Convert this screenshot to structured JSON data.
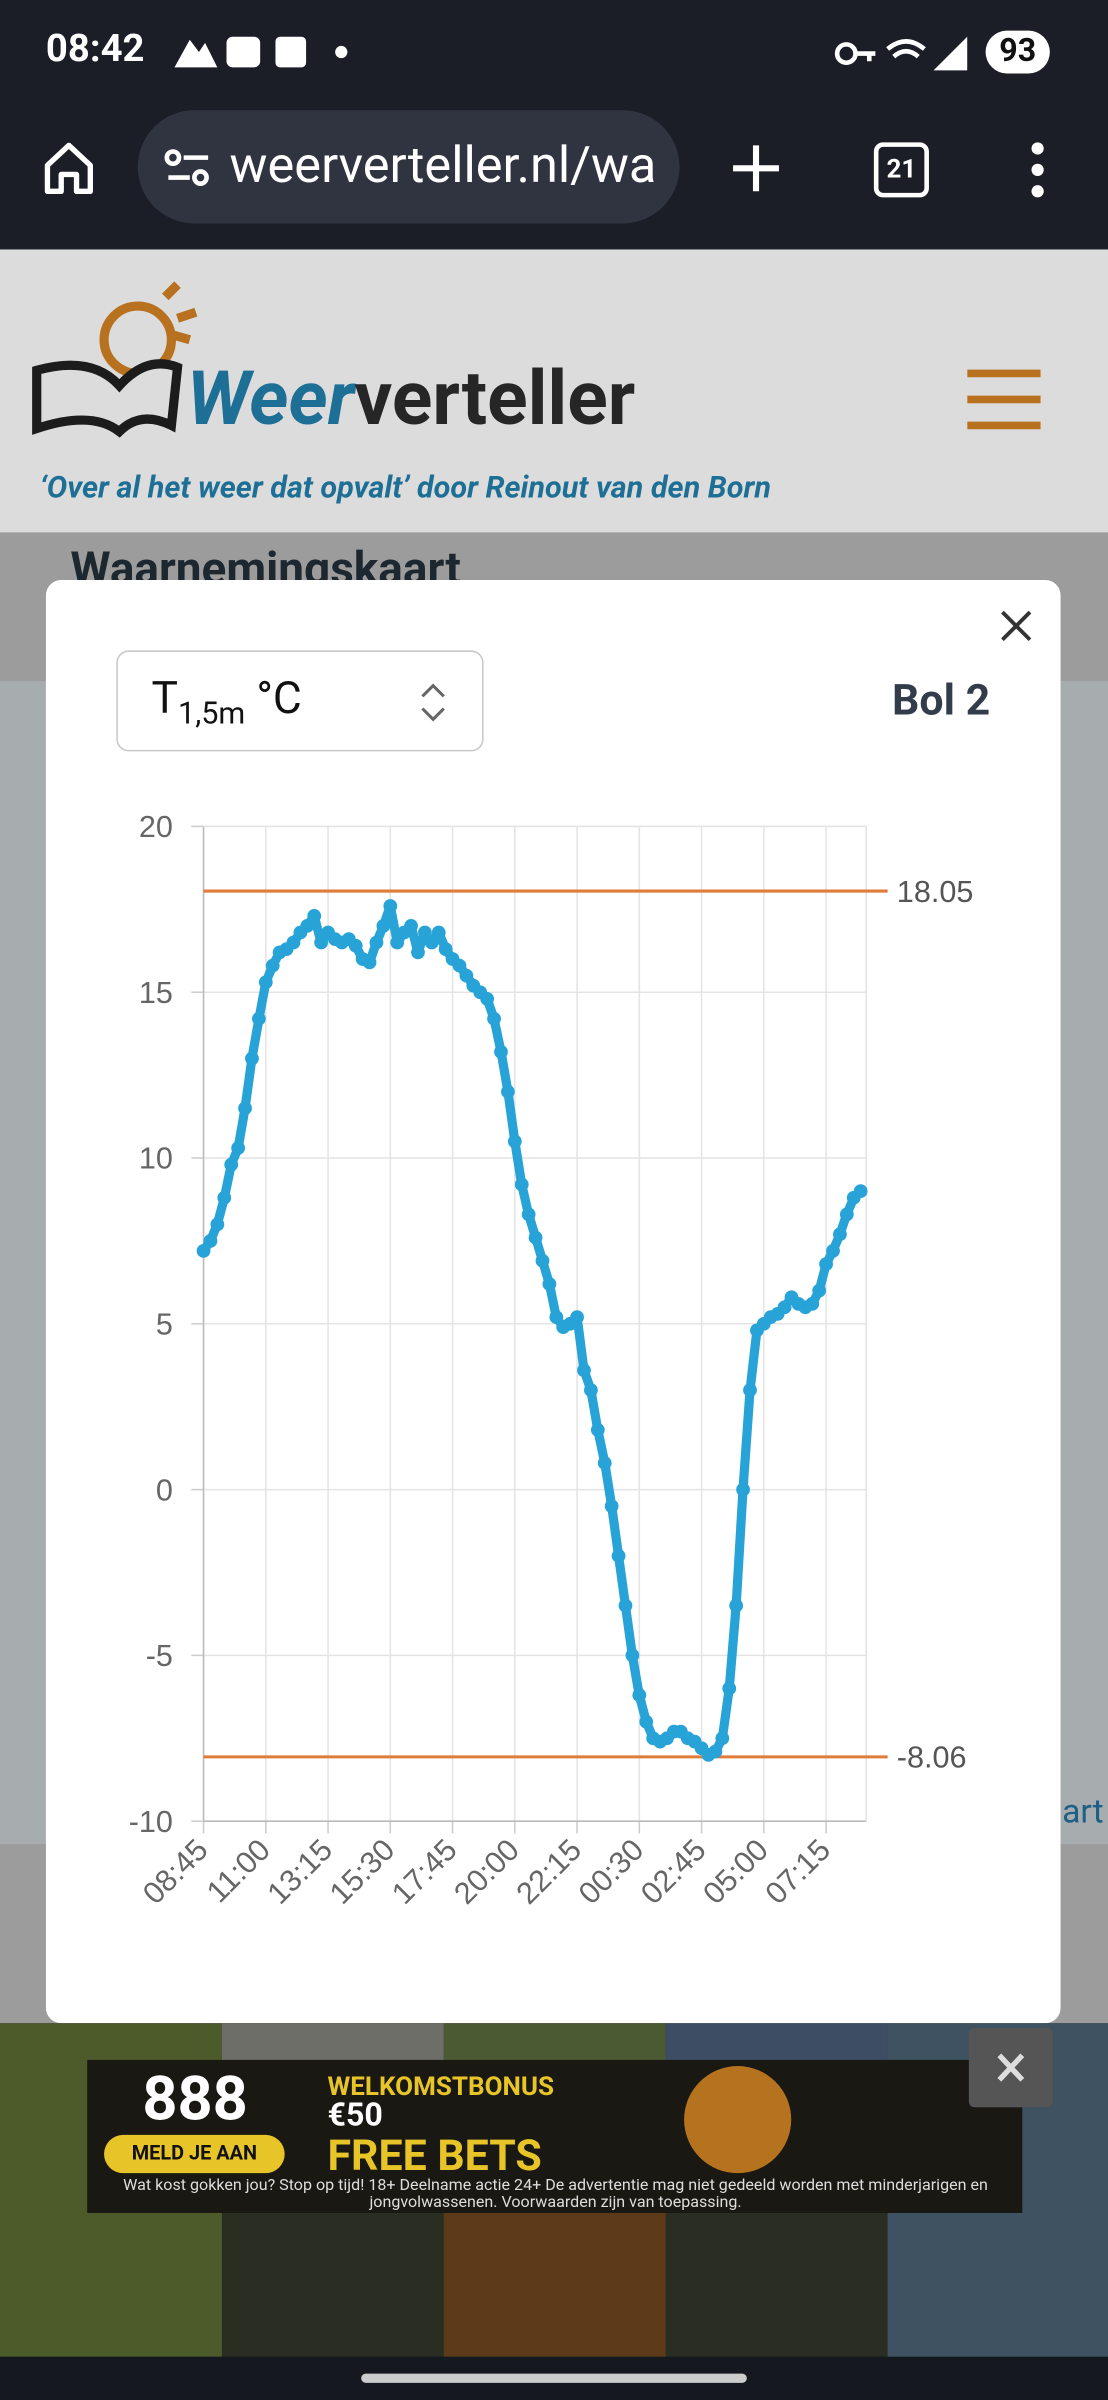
{
  "status_bar": {
    "time": "08:42",
    "battery": 93
  },
  "browser": {
    "url": "weerverteller.nl/wa",
    "tab_count": 21
  },
  "site": {
    "logo_part1": "Weer",
    "logo_part2": "verteller",
    "tagline": "‘Over al het weer dat opvalt’ door Reinout van den Born",
    "heading": "Waarnemingskaart"
  },
  "modal": {
    "select": {
      "symbol": "T",
      "subscript": "1,5m",
      "unit": "°C"
    },
    "station": "Bol 2"
  },
  "chart_data": {
    "type": "line",
    "categories": [
      "08:45",
      null,
      null,
      null,
      null,
      null,
      null,
      null,
      null,
      "11:00",
      null,
      null,
      null,
      null,
      null,
      null,
      null,
      null,
      "13:15",
      null,
      null,
      null,
      null,
      null,
      null,
      null,
      null,
      "15:30",
      null,
      null,
      null,
      null,
      null,
      null,
      null,
      null,
      "17:45",
      null,
      null,
      null,
      null,
      null,
      null,
      null,
      null,
      "20:00",
      null,
      null,
      null,
      null,
      null,
      null,
      null,
      null,
      "22:15",
      null,
      null,
      null,
      null,
      null,
      null,
      null,
      null,
      "00:30",
      null,
      null,
      null,
      null,
      null,
      null,
      null,
      null,
      "02:45",
      null,
      null,
      null,
      null,
      null,
      null,
      null,
      null,
      "05:00",
      null,
      null,
      null,
      null,
      null,
      null,
      null,
      null,
      "07:15",
      null,
      null,
      null,
      null,
      null
    ],
    "series": [
      {
        "color": "#27a3d7",
        "values": [
          7.2,
          7.5,
          8.0,
          8.8,
          9.8,
          10.3,
          11.5,
          13.0,
          14.2,
          15.3,
          15.8,
          16.2,
          16.3,
          16.5,
          16.8,
          17.0,
          17.3,
          16.5,
          16.8,
          16.6,
          16.5,
          16.6,
          16.4,
          16.0,
          15.9,
          16.5,
          17.0,
          17.6,
          16.5,
          16.8,
          17.0,
          16.2,
          16.8,
          16.5,
          16.8,
          16.3,
          16.0,
          15.8,
          15.5,
          15.2,
          15.0,
          14.8,
          14.2,
          13.2,
          12.0,
          10.5,
          9.2,
          8.3,
          7.6,
          6.9,
          6.2,
          5.2,
          4.9,
          5.0,
          5.2,
          3.6,
          3.0,
          1.8,
          0.8,
          -0.5,
          -2.0,
          -3.5,
          -5.0,
          -6.2,
          -7.0,
          -7.5,
          -7.6,
          -7.5,
          -7.3,
          -7.3,
          -7.5,
          -7.6,
          -7.8,
          -8.0,
          -7.9,
          -7.5,
          -6.0,
          -3.5,
          0.0,
          3.0,
          4.8,
          5.0,
          5.2,
          5.3,
          5.5,
          5.8,
          5.6,
          5.5,
          5.6,
          6.0,
          6.8,
          7.2,
          7.7,
          8.3,
          8.8,
          9.0
        ]
      }
    ],
    "reference_lines": [
      {
        "value": 18.05,
        "color": "#e07b39"
      },
      {
        "value": -8.06,
        "color": "#e07b39"
      }
    ],
    "ylim": [
      -10,
      20
    ],
    "yticks": [
      -10,
      -5,
      0,
      5,
      10,
      15,
      20
    ],
    "grid": true
  },
  "ad": {
    "brand": "888",
    "button": "MELD JE AAN",
    "headline": "WELKOMSTBONUS",
    "amount": "€50",
    "offer": "FREE BETS",
    "disclaimer": "Wat kost gokken jou? Stop op tijd! 18+ Deelname actie 24+ De advertentie mag niet gedeeld worden met minderjarigen en jongvolwassenen. Voorwaarden zijn van toepassing."
  },
  "map": {
    "label": "art"
  }
}
